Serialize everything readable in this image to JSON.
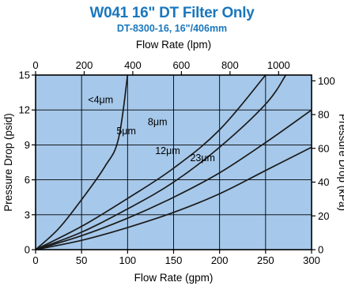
{
  "header": {
    "title": "W041 16\" DT Filter Only",
    "subtitle": "DT-8300-16, 16\"/406mm"
  },
  "chart_data": {
    "type": "line",
    "title": "W041 16\" DT Filter Only",
    "subtitle": "DT-8300-16, 16\"/406mm",
    "xlabel": "Flow Rate  (gpm)",
    "ylabel": "Pressure Drop  (psid)",
    "x2label": "Flow Rate  (lpm)",
    "y2label": "Pressure Drop  (kPa)",
    "xlim": [
      0,
      300
    ],
    "ylim": [
      0,
      15
    ],
    "x2lim": [
      0,
      1135.6
    ],
    "y2lim": [
      0,
      103.4
    ],
    "x_ticks": [
      0,
      50,
      100,
      150,
      200,
      250,
      300
    ],
    "y_ticks": [
      0,
      3,
      6,
      9,
      12,
      15
    ],
    "x2_ticks": [
      0,
      200,
      400,
      600,
      800,
      1000
    ],
    "y2_ticks": [
      0,
      20,
      40,
      60,
      80,
      100
    ],
    "grid": true,
    "plot_background": "#a6c8ea",
    "line_color": "#1a1a1a",
    "title_color": "#1a77bd",
    "series": [
      {
        "name": "<4μm",
        "x": [
          0,
          25,
          50,
          75,
          90,
          100
        ],
        "y": [
          0,
          1.8,
          4.3,
          7.1,
          9.5,
          15
        ]
      },
      {
        "name": "5μm",
        "x": [
          0,
          50,
          100,
          150,
          200,
          250
        ],
        "y": [
          0,
          2.0,
          4.4,
          7.0,
          10.3,
          15
        ]
      },
      {
        "name": "8μm",
        "x": [
          0,
          50,
          100,
          150,
          200,
          250,
          272
        ],
        "y": [
          0,
          1.5,
          3.5,
          5.8,
          8.8,
          12.5,
          15
        ]
      },
      {
        "name": "12μm",
        "x": [
          0,
          50,
          100,
          150,
          200,
          250,
          300
        ],
        "y": [
          0,
          1.2,
          2.7,
          4.5,
          6.6,
          9.2,
          12.0
        ]
      },
      {
        "name": "23μm",
        "x": [
          0,
          50,
          100,
          150,
          200,
          250,
          300
        ],
        "y": [
          0,
          0.8,
          1.9,
          3.2,
          4.8,
          6.8,
          8.8
        ]
      }
    ]
  }
}
